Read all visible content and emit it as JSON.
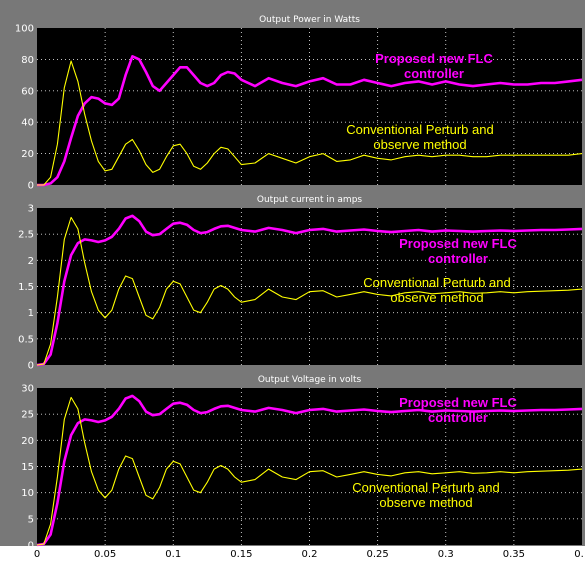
{
  "colors": {
    "frame": "#787878",
    "axes_background": "#000000",
    "flc_series": "#ff00ff",
    "po_series": "#ffff00",
    "tick_text": "#ffffff"
  },
  "chart_data": [
    {
      "type": "line",
      "title": "Output Power in Watts",
      "xlim": [
        0,
        0.4
      ],
      "ylim": [
        0,
        100
      ],
      "x_ticks": [
        "0",
        "0.05",
        "0.1",
        "0.15",
        "0.2",
        "0.25",
        "0.3",
        "0.35",
        "0."
      ],
      "y_ticks": [
        "0",
        "20",
        "40",
        "60",
        "80",
        "100"
      ],
      "grid": true,
      "annotations": [
        {
          "lines": [
            "Proposed new FLC",
            "controller"
          ],
          "series": "flc"
        },
        {
          "lines": [
            "Conventional Perturb and",
            "observe method"
          ],
          "series": "po"
        }
      ],
      "series": [
        {
          "key": "flc",
          "x": [
            0,
            0.005,
            0.01,
            0.015,
            0.02,
            0.025,
            0.03,
            0.035,
            0.04,
            0.045,
            0.05,
            0.055,
            0.06,
            0.065,
            0.07,
            0.075,
            0.08,
            0.085,
            0.09,
            0.095,
            0.1,
            0.105,
            0.11,
            0.115,
            0.12,
            0.125,
            0.13,
            0.135,
            0.14,
            0.145,
            0.15,
            0.16,
            0.17,
            0.18,
            0.19,
            0.2,
            0.21,
            0.22,
            0.23,
            0.24,
            0.25,
            0.26,
            0.27,
            0.28,
            0.29,
            0.3,
            0.31,
            0.32,
            0.33,
            0.34,
            0.35,
            0.36,
            0.37,
            0.38,
            0.39,
            0.4
          ],
          "values": [
            0,
            0,
            1,
            5,
            15,
            30,
            44,
            52,
            56,
            55,
            52,
            51,
            55,
            70,
            82,
            80,
            72,
            63,
            60,
            65,
            70,
            75,
            75,
            70,
            65,
            63,
            65,
            70,
            72,
            71,
            67,
            63,
            68,
            65,
            63,
            66,
            68,
            64,
            64,
            67,
            65,
            63,
            65,
            66,
            64,
            66,
            64,
            63,
            64,
            65,
            64,
            64,
            65,
            65,
            66,
            67
          ]
        },
        {
          "key": "po",
          "x": [
            0,
            0.005,
            0.01,
            0.015,
            0.02,
            0.025,
            0.03,
            0.035,
            0.04,
            0.045,
            0.05,
            0.055,
            0.06,
            0.065,
            0.07,
            0.075,
            0.08,
            0.085,
            0.09,
            0.095,
            0.1,
            0.105,
            0.11,
            0.115,
            0.12,
            0.125,
            0.13,
            0.135,
            0.14,
            0.145,
            0.15,
            0.16,
            0.17,
            0.18,
            0.19,
            0.2,
            0.21,
            0.22,
            0.23,
            0.24,
            0.25,
            0.26,
            0.27,
            0.28,
            0.29,
            0.3,
            0.31,
            0.32,
            0.33,
            0.34,
            0.35,
            0.36,
            0.37,
            0.38,
            0.39,
            0.4
          ],
          "values": [
            0,
            0,
            5,
            26,
            62,
            79,
            66,
            45,
            28,
            15,
            9,
            10,
            18,
            26,
            29,
            22,
            13,
            8,
            10,
            18,
            25,
            26,
            20,
            12,
            10,
            14,
            20,
            24,
            23,
            18,
            13,
            14,
            20,
            17,
            14,
            18,
            20,
            15,
            16,
            19,
            17,
            16,
            18,
            19,
            18,
            19,
            19,
            18,
            18,
            19,
            19,
            19,
            19,
            19,
            19,
            20
          ]
        }
      ]
    },
    {
      "type": "line",
      "title": "Output current in amps",
      "xlim": [
        0,
        0.4
      ],
      "ylim": [
        0,
        3
      ],
      "x_ticks": [
        "0",
        "0.05",
        "0.1",
        "0.15",
        "0.2",
        "0.25",
        "0.3",
        "0.35",
        "0."
      ],
      "y_ticks": [
        "0",
        "0.5",
        "1",
        "1.5",
        "2",
        "2.5",
        "3"
      ],
      "grid": true,
      "annotations": [
        {
          "lines": [
            "Proposed new FLC",
            "controller"
          ],
          "series": "flc"
        },
        {
          "lines": [
            "Conventional Perturb and",
            "observe method"
          ],
          "series": "po"
        }
      ],
      "series": [
        {
          "key": "flc",
          "x": [
            0,
            0.005,
            0.01,
            0.015,
            0.02,
            0.025,
            0.03,
            0.035,
            0.04,
            0.045,
            0.05,
            0.055,
            0.06,
            0.065,
            0.07,
            0.075,
            0.08,
            0.085,
            0.09,
            0.095,
            0.1,
            0.105,
            0.11,
            0.115,
            0.12,
            0.125,
            0.13,
            0.135,
            0.14,
            0.145,
            0.15,
            0.16,
            0.17,
            0.18,
            0.19,
            0.2,
            0.21,
            0.22,
            0.23,
            0.24,
            0.25,
            0.26,
            0.27,
            0.28,
            0.29,
            0.3,
            0.31,
            0.32,
            0.33,
            0.34,
            0.35,
            0.36,
            0.37,
            0.38,
            0.39,
            0.4
          ],
          "values": [
            0,
            0.02,
            0.2,
            0.8,
            1.6,
            2.1,
            2.33,
            2.4,
            2.38,
            2.35,
            2.38,
            2.45,
            2.6,
            2.8,
            2.85,
            2.75,
            2.55,
            2.48,
            2.5,
            2.6,
            2.7,
            2.72,
            2.68,
            2.58,
            2.52,
            2.54,
            2.6,
            2.65,
            2.66,
            2.62,
            2.58,
            2.55,
            2.62,
            2.58,
            2.52,
            2.58,
            2.6,
            2.55,
            2.57,
            2.59,
            2.56,
            2.54,
            2.56,
            2.58,
            2.55,
            2.57,
            2.56,
            2.55,
            2.56,
            2.57,
            2.56,
            2.57,
            2.58,
            2.58,
            2.59,
            2.6
          ]
        },
        {
          "key": "po",
          "x": [
            0,
            0.005,
            0.01,
            0.015,
            0.02,
            0.025,
            0.03,
            0.035,
            0.04,
            0.045,
            0.05,
            0.055,
            0.06,
            0.065,
            0.07,
            0.075,
            0.08,
            0.085,
            0.09,
            0.095,
            0.1,
            0.105,
            0.11,
            0.115,
            0.12,
            0.125,
            0.13,
            0.135,
            0.14,
            0.145,
            0.15,
            0.16,
            0.17,
            0.18,
            0.19,
            0.2,
            0.21,
            0.22,
            0.23,
            0.24,
            0.25,
            0.26,
            0.27,
            0.28,
            0.29,
            0.3,
            0.31,
            0.32,
            0.33,
            0.34,
            0.35,
            0.36,
            0.37,
            0.38,
            0.39,
            0.4
          ],
          "values": [
            0,
            0.02,
            0.4,
            1.3,
            2.4,
            2.82,
            2.6,
            1.95,
            1.4,
            1.05,
            0.9,
            1.05,
            1.45,
            1.7,
            1.65,
            1.3,
            0.95,
            0.88,
            1.1,
            1.45,
            1.6,
            1.55,
            1.3,
            1.05,
            1.0,
            1.2,
            1.45,
            1.52,
            1.45,
            1.3,
            1.2,
            1.25,
            1.45,
            1.3,
            1.25,
            1.4,
            1.42,
            1.3,
            1.35,
            1.4,
            1.35,
            1.32,
            1.38,
            1.4,
            1.36,
            1.38,
            1.4,
            1.37,
            1.38,
            1.4,
            1.38,
            1.4,
            1.41,
            1.42,
            1.43,
            1.45
          ]
        }
      ]
    },
    {
      "type": "line",
      "title": "Output Voltage in volts",
      "xlim": [
        0,
        0.4
      ],
      "ylim": [
        0,
        30
      ],
      "x_ticks": [
        "0",
        "0.05",
        "0.1",
        "0.15",
        "0.2",
        "0.25",
        "0.3",
        "0.35",
        "0."
      ],
      "y_ticks": [
        "0",
        "5",
        "10",
        "15",
        "20",
        "25",
        "30"
      ],
      "grid": true,
      "annotations": [
        {
          "lines": [
            "Proposed new FLC",
            "controller"
          ],
          "series": "flc"
        },
        {
          "lines": [
            "Conventional Perturb and",
            "observe method"
          ],
          "series": "po"
        }
      ],
      "series": [
        {
          "key": "flc",
          "x": [
            0,
            0.005,
            0.01,
            0.015,
            0.02,
            0.025,
            0.03,
            0.035,
            0.04,
            0.045,
            0.05,
            0.055,
            0.06,
            0.065,
            0.07,
            0.075,
            0.08,
            0.085,
            0.09,
            0.095,
            0.1,
            0.105,
            0.11,
            0.115,
            0.12,
            0.125,
            0.13,
            0.135,
            0.14,
            0.145,
            0.15,
            0.16,
            0.17,
            0.18,
            0.19,
            0.2,
            0.21,
            0.22,
            0.23,
            0.24,
            0.25,
            0.26,
            0.27,
            0.28,
            0.29,
            0.3,
            0.31,
            0.32,
            0.33,
            0.34,
            0.35,
            0.36,
            0.37,
            0.38,
            0.39,
            0.4
          ],
          "values": [
            0,
            0.2,
            2,
            8,
            16,
            21,
            23.3,
            24,
            23.8,
            23.5,
            23.8,
            24.5,
            26,
            28,
            28.5,
            27.5,
            25.5,
            24.8,
            25,
            26,
            27,
            27.2,
            26.8,
            25.8,
            25.2,
            25.4,
            26,
            26.5,
            26.6,
            26.2,
            25.8,
            25.5,
            26.2,
            25.8,
            25.2,
            25.8,
            26,
            25.5,
            25.7,
            25.9,
            25.6,
            25.4,
            25.6,
            25.8,
            25.5,
            25.7,
            25.6,
            25.5,
            25.6,
            25.7,
            25.6,
            25.7,
            25.8,
            25.8,
            25.9,
            26
          ]
        },
        {
          "key": "po",
          "x": [
            0,
            0.005,
            0.01,
            0.015,
            0.02,
            0.025,
            0.03,
            0.035,
            0.04,
            0.045,
            0.05,
            0.055,
            0.06,
            0.065,
            0.07,
            0.075,
            0.08,
            0.085,
            0.09,
            0.095,
            0.1,
            0.105,
            0.11,
            0.115,
            0.12,
            0.125,
            0.13,
            0.135,
            0.14,
            0.145,
            0.15,
            0.16,
            0.17,
            0.18,
            0.19,
            0.2,
            0.21,
            0.22,
            0.23,
            0.24,
            0.25,
            0.26,
            0.27,
            0.28,
            0.29,
            0.3,
            0.31,
            0.32,
            0.33,
            0.34,
            0.35,
            0.36,
            0.37,
            0.38,
            0.39,
            0.4
          ],
          "values": [
            0,
            0.2,
            4,
            13,
            24,
            28.2,
            26,
            19.5,
            14,
            10.5,
            9,
            10.5,
            14.5,
            17,
            16.5,
            13,
            9.5,
            8.8,
            11,
            14.5,
            16,
            15.5,
            13,
            10.5,
            10,
            12,
            14.5,
            15.2,
            14.5,
            13,
            12,
            12.5,
            14.5,
            13,
            12.5,
            14,
            14.2,
            13,
            13.5,
            14,
            13.5,
            13.2,
            13.8,
            14,
            13.6,
            13.8,
            14,
            13.7,
            13.8,
            14,
            13.8,
            14,
            14.1,
            14.2,
            14.3,
            14.5
          ]
        }
      ]
    }
  ]
}
